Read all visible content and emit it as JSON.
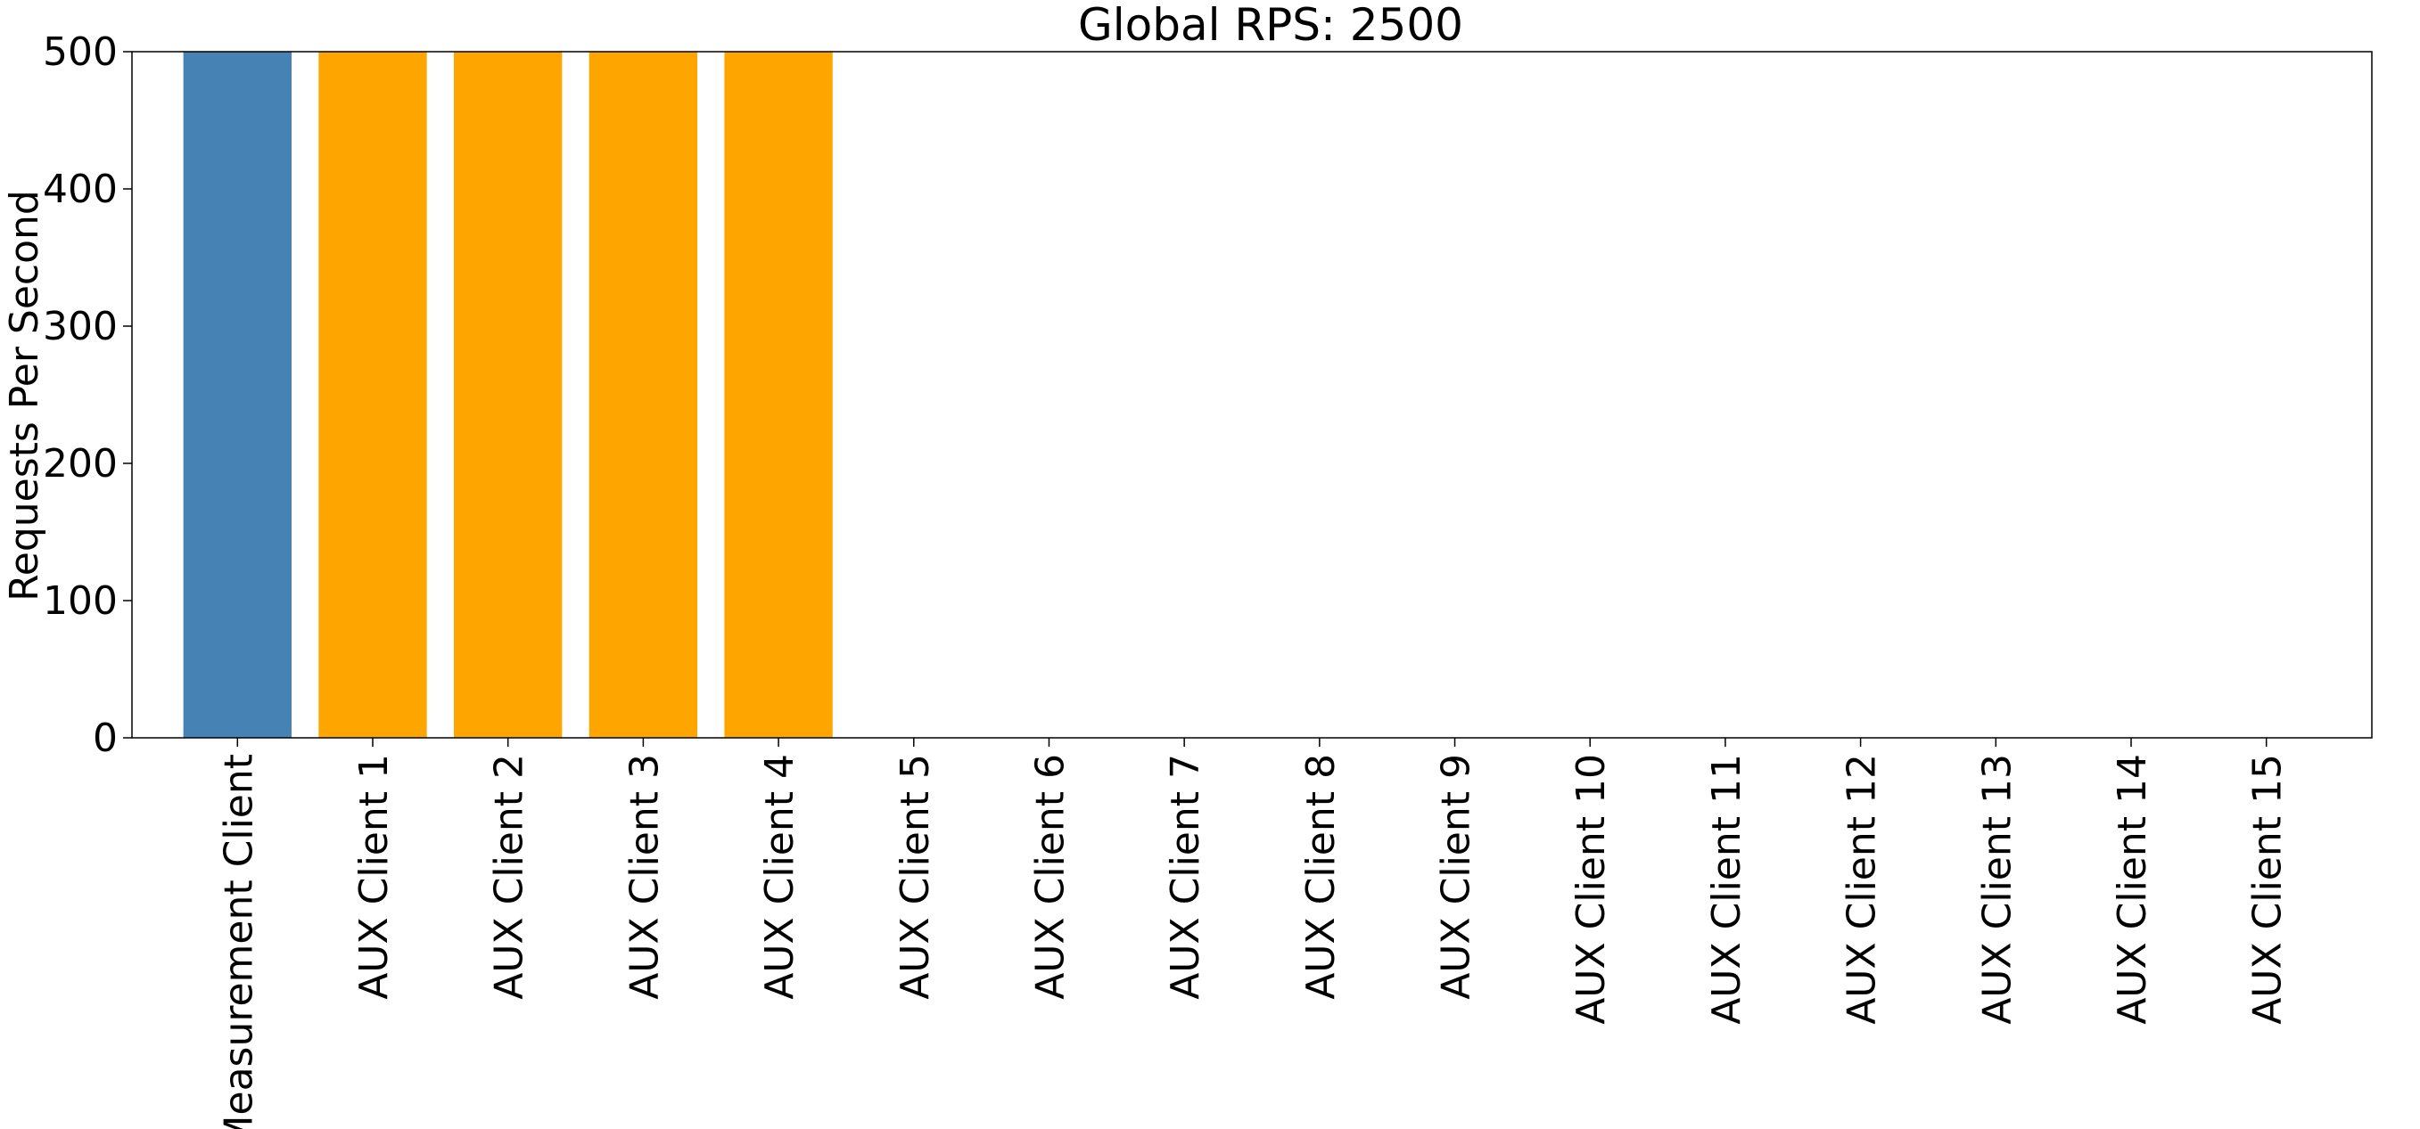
{
  "chart_data": {
    "type": "bar",
    "title": "Global RPS: 2500",
    "xlabel": "",
    "ylabel": "Requests Per Second",
    "ylim": [
      0,
      500
    ],
    "yticks": [
      0,
      100,
      200,
      300,
      400,
      500
    ],
    "grid": false,
    "categories": [
      "Measurement Client",
      "AUX Client 1",
      "AUX Client 2",
      "AUX Client 3",
      "AUX Client 4",
      "AUX Client 5",
      "AUX Client 6",
      "AUX Client 7",
      "AUX Client 8",
      "AUX Client 9",
      "AUX Client 10",
      "AUX Client 11",
      "AUX Client 12",
      "AUX Client 13",
      "AUX Client 14",
      "AUX Client 15"
    ],
    "values": [
      500,
      500,
      500,
      500,
      500,
      0,
      0,
      0,
      0,
      0,
      0,
      0,
      0,
      0,
      0,
      0
    ],
    "colors": [
      "#4682b4",
      "#ffa500",
      "#ffa500",
      "#ffa500",
      "#ffa500",
      "#ffa500",
      "#ffa500",
      "#ffa500",
      "#ffa500",
      "#ffa500",
      "#ffa500",
      "#ffa500",
      "#ffa500",
      "#ffa500",
      "#ffa500",
      "#ffa500"
    ]
  }
}
